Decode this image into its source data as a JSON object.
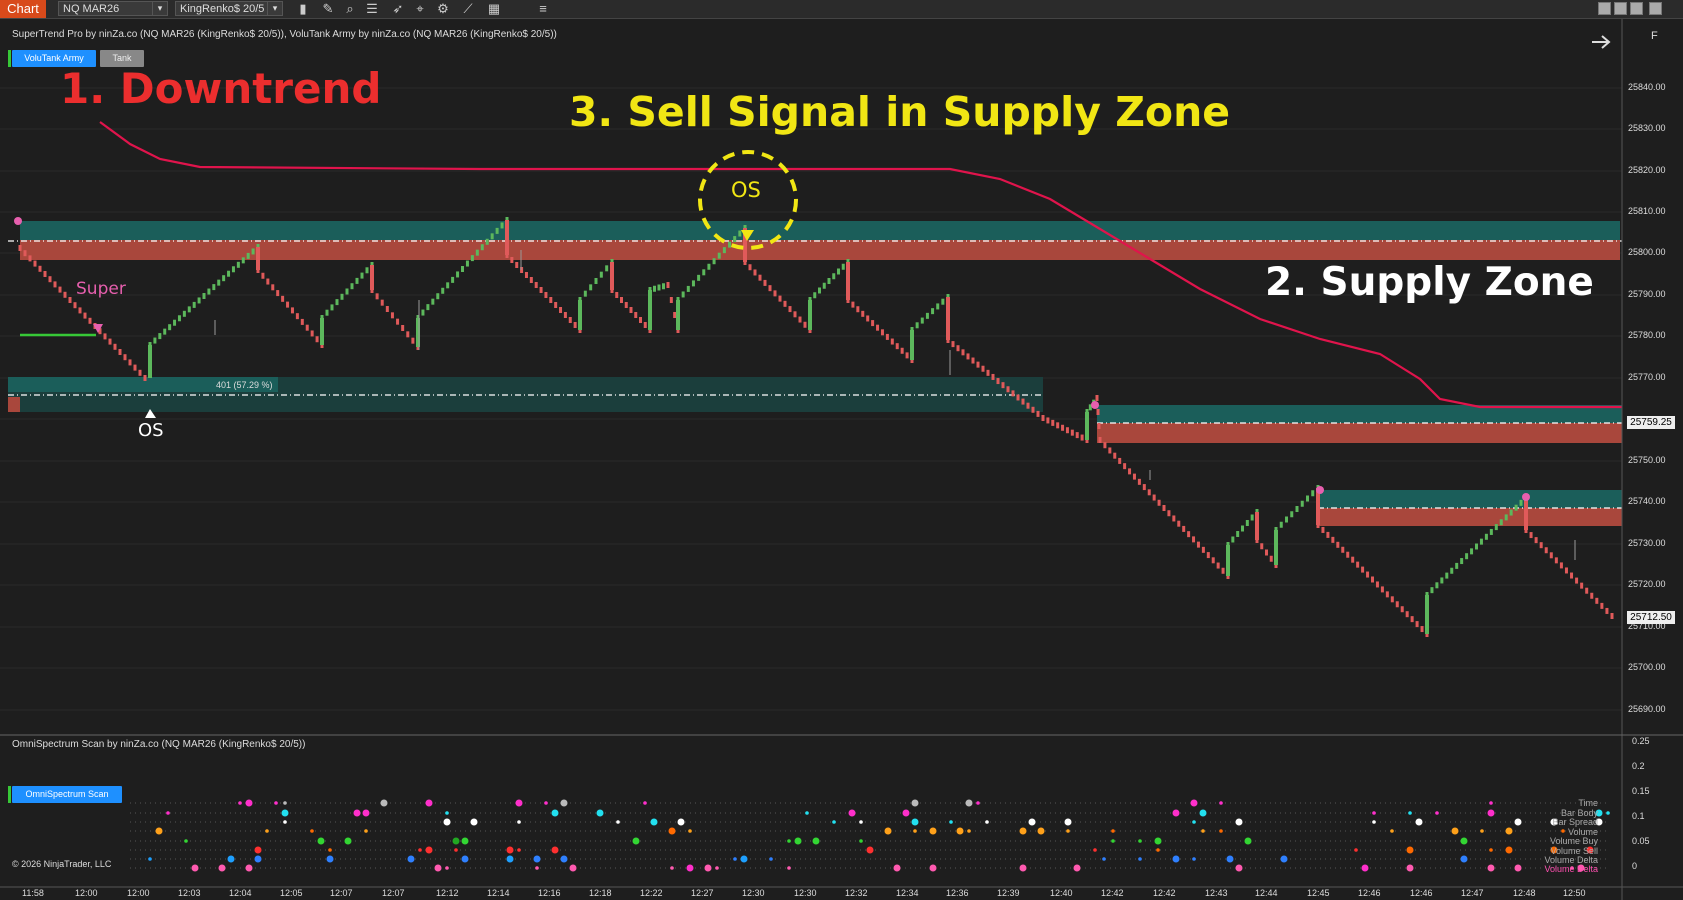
{
  "toolbar": {
    "chart_tab": "Chart",
    "instrument": "NQ MAR26",
    "bar_type": "KingRenko$ 20/5",
    "f_label": "F"
  },
  "indicators_line": "SuperTrend Pro by ninZa.co (NQ MAR26 (KingRenko$ 20/5)), VoluTank Army by ninZa.co (NQ MAR26 (KingRenko$ 20/5))",
  "buttons": {
    "volutank_army": "VoluTank Army",
    "tank": "Tank",
    "omnispectrum_scan": "OmniSpectrum Scan"
  },
  "annotations": {
    "downtrend": "1. Downtrend",
    "sell_signal": "3. Sell Signal in Supply Zone",
    "supply_zone": "2. Supply Zone",
    "os_circled": "OS",
    "os_bottom": "OS",
    "super": "Super",
    "zone_info": "401 (57.29 %)"
  },
  "price_axis": {
    "labels": [
      "25840.00",
      "25830.00",
      "25820.00",
      "25810.00",
      "25800.00",
      "25790.00",
      "25780.00",
      "25770.00",
      "25750.00",
      "25740.00",
      "25730.00",
      "25720.00",
      "25710.00",
      "25700.00",
      "25690.00"
    ],
    "current_price_1": "25759.25",
    "current_price_2": "25712.50"
  },
  "lower_panel": {
    "title": "OmniSpectrum Scan by ninZa.co (NQ MAR26 (KingRenko$ 20/5))",
    "axis_labels": [
      "0.25",
      "0.2",
      "0.15",
      "0.1",
      "0.05",
      "0"
    ],
    "rows": [
      "Time",
      "Bar Body",
      "Bar Spread",
      "Volume",
      "Volume Buy",
      "Volume Sell",
      "Volume Delta",
      "Volume Delta"
    ]
  },
  "copyright": "© 2026 NinjaTrader, LLC",
  "time_axis": [
    "11:58",
    "12:00",
    "12:00",
    "12:03",
    "12:04",
    "12:05",
    "12:07",
    "12:07",
    "12:12",
    "12:14",
    "12:16",
    "12:18",
    "12:22",
    "12:27",
    "12:30",
    "12:30",
    "12:32",
    "12:34",
    "12:36",
    "12:39",
    "12:40",
    "12:42",
    "12:42",
    "12:43",
    "12:44",
    "12:45",
    "12:46",
    "12:46",
    "12:47",
    "12:48",
    "12:50"
  ],
  "colors": {
    "background": "#1e1e1e",
    "up_bar": "#5cb85c",
    "down_bar": "#e05a5a",
    "supertrend": "#e0144c",
    "demand_zone": "#1b5e5a",
    "supply_zone": "#a9473c",
    "annotation_red": "#ec2e2e",
    "annotation_yellow": "#f1e614",
    "annotation_white": "#ffffff",
    "super_label": "#e75fae"
  }
}
